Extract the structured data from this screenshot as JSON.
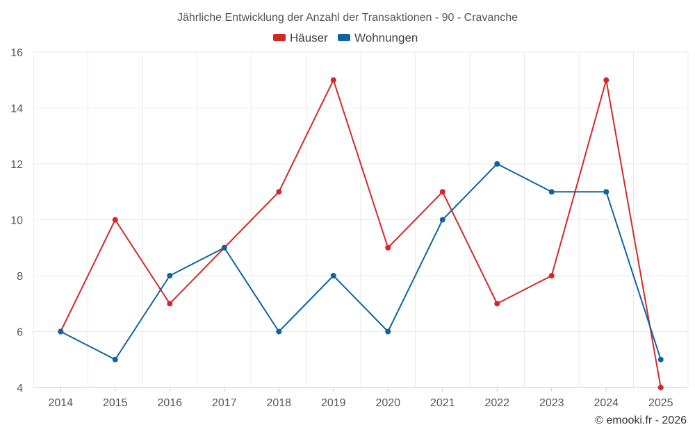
{
  "chart_data": {
    "type": "line",
    "title": "Jährliche Entwicklung der Anzahl der Transaktionen - 90 - Cravanche",
    "categories": [
      "2014",
      "2015",
      "2016",
      "2017",
      "2018",
      "2019",
      "2020",
      "2021",
      "2022",
      "2023",
      "2024",
      "2025"
    ],
    "series": [
      {
        "name": "Häuser",
        "color": "#d62728",
        "values": [
          6,
          10,
          7,
          9,
          11,
          15,
          9,
          11,
          7,
          8,
          15,
          4
        ]
      },
      {
        "name": "Wohnungen",
        "color": "#0e64a0",
        "values": [
          6,
          5,
          8,
          9,
          6,
          8,
          6,
          10,
          12,
          11,
          11,
          5
        ]
      }
    ],
    "ylim": [
      4,
      16
    ],
    "yticks": [
      "4",
      "6",
      "8",
      "10",
      "12",
      "14",
      "16"
    ],
    "xlabel": "",
    "ylabel": "",
    "grid": true,
    "legend": "top-center"
  },
  "credit": "© emooki.fr - 2026"
}
